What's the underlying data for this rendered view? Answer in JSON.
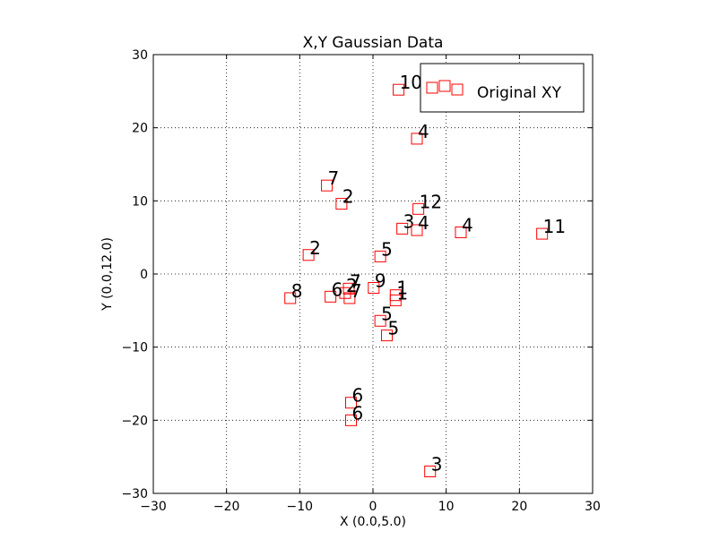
{
  "chart_data": {
    "type": "scatter",
    "title": "X,Y Gaussian Data",
    "xlabel": "X (0.0,5.0)",
    "ylabel": "Y (0.0,12.0)",
    "xlim": [
      -30,
      30
    ],
    "ylim": [
      -30,
      30
    ],
    "xticks": [
      -30,
      -20,
      -10,
      0,
      10,
      20,
      30
    ],
    "yticks": [
      -30,
      -20,
      -10,
      0,
      10,
      20,
      30
    ],
    "xtick_labels": [
      "−30",
      "−20",
      "−10",
      "0",
      "10",
      "20",
      "30"
    ],
    "ytick_labels": [
      "−30",
      "−20",
      "−10",
      "0",
      "10",
      "20",
      "30"
    ],
    "grid": true,
    "legend": {
      "placement": "top-right",
      "entries": [
        "Original XY"
      ]
    },
    "marker": {
      "shape": "square",
      "edge_color": "#ff0000",
      "face_color": "none"
    },
    "series": [
      {
        "name": "Original XY",
        "points": [
          {
            "x": 3.5,
            "y": 25.2,
            "label": "10"
          },
          {
            "x": 6.0,
            "y": 18.5,
            "label": "4"
          },
          {
            "x": -6.3,
            "y": 12.1,
            "label": "7"
          },
          {
            "x": -4.3,
            "y": 9.6,
            "label": "2"
          },
          {
            "x": 6.2,
            "y": 8.9,
            "label": "12"
          },
          {
            "x": 4.0,
            "y": 6.2,
            "label": "3"
          },
          {
            "x": 6.0,
            "y": 6.0,
            "label": "4"
          },
          {
            "x": 12.0,
            "y": 5.7,
            "label": "4"
          },
          {
            "x": 23.1,
            "y": 5.5,
            "label": "11"
          },
          {
            "x": -8.8,
            "y": 2.6,
            "label": "2"
          },
          {
            "x": 1.0,
            "y": 2.4,
            "label": "5"
          },
          {
            "x": 0.1,
            "y": -1.9,
            "label": "9"
          },
          {
            "x": -3.3,
            "y": -2.0,
            "label": "7"
          },
          {
            "x": -3.8,
            "y": -2.6,
            "label": "2"
          },
          {
            "x": -3.2,
            "y": -3.3,
            "label": "7"
          },
          {
            "x": -5.8,
            "y": -3.1,
            "label": "6"
          },
          {
            "x": -11.3,
            "y": -3.3,
            "label": "8"
          },
          {
            "x": 3.1,
            "y": -2.9,
            "label": "1"
          },
          {
            "x": 3.1,
            "y": -3.6,
            "label": "1"
          },
          {
            "x": 1.0,
            "y": -6.4,
            "label": "5"
          },
          {
            "x": 1.9,
            "y": -8.4,
            "label": "5"
          },
          {
            "x": -3.0,
            "y": -17.6,
            "label": "6"
          },
          {
            "x": -3.0,
            "y": -20.0,
            "label": "6"
          },
          {
            "x": 7.8,
            "y": -27.0,
            "label": "3"
          }
        ]
      }
    ]
  }
}
